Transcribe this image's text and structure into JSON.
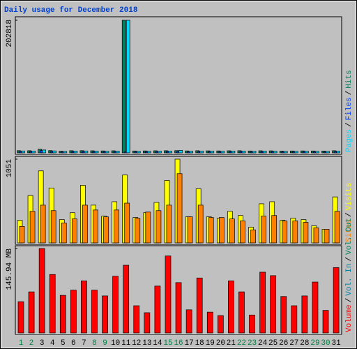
{
  "title": "Daily usage for December 2018",
  "legend_separator": "/",
  "chart_data": [
    {
      "type": "bar",
      "ylim": [
        0,
        202818
      ],
      "yticks": [
        202818
      ],
      "series": [
        {
          "name": "Hits",
          "color": "#00805c",
          "values": [
            3400,
            3300,
            5600,
            3500,
            2600,
            3300,
            3400,
            3200,
            3000,
            3200,
            202818,
            2900,
            3000,
            3200,
            3300,
            3400,
            3000,
            3300,
            3100,
            3000,
            3200,
            3300,
            2900,
            3200,
            3100,
            2800,
            2900,
            3000,
            2900,
            2800,
            3300
          ]
        },
        {
          "name": "Files",
          "color": "#0040ff",
          "values": [
            2200,
            2100,
            3600,
            2300,
            1700,
            2200,
            2200,
            2100,
            1900,
            2100,
            1500,
            1800,
            1900,
            2100,
            2200,
            2300,
            1900,
            2100,
            2000,
            1900,
            2100,
            2200,
            1800,
            2100,
            2000,
            1800,
            1800,
            1900,
            1800,
            1800,
            2100
          ]
        },
        {
          "name": "Pages",
          "color": "#00d8ff",
          "values": [
            2900,
            2800,
            4400,
            3000,
            2200,
            2800,
            2900,
            2700,
            2500,
            2700,
            202818,
            2400,
            2500,
            2700,
            2800,
            3900,
            2500,
            2800,
            2600,
            2500,
            2700,
            2800,
            2400,
            2700,
            2600,
            2300,
            2400,
            2500,
            2400,
            2300,
            2800
          ]
        }
      ]
    },
    {
      "type": "bar",
      "ylim": [
        0,
        1051
      ],
      "yticks": [
        1051
      ],
      "series": [
        {
          "name": "Visits",
          "color": "#ffff00",
          "values": [
            284,
            594,
            904,
            689,
            293,
            379,
            723,
            474,
            336,
            517,
            852,
            319,
            379,
            508,
            784,
            1051,
            327,
            680,
            327,
            310,
            396,
            344,
            198,
            491,
            517,
            284,
            310,
            293,
            215,
            172,
            577
          ]
        },
        {
          "name": "Sites",
          "color": "#ff8000",
          "values": [
            207,
            396,
            474,
            405,
            250,
            301,
            474,
            413,
            327,
            413,
            499,
            310,
            387,
            405,
            474,
            869,
            327,
            474,
            319,
            319,
            301,
            276,
            164,
            336,
            344,
            276,
            276,
            258,
            189,
            172,
            396
          ]
        }
      ]
    },
    {
      "type": "bar",
      "ylim": [
        0,
        145.94
      ],
      "yticks": [
        {
          "value": 145.94,
          "label": "145.94 MB"
        }
      ],
      "legend_only": [
        {
          "name": "Vol. Out",
          "color": "#00805c"
        },
        {
          "name": "Vol. In",
          "color": "#0080a0"
        }
      ],
      "series": [
        {
          "name": "Volume",
          "color": "#ff0000",
          "values": [
            54,
            71,
            145.94,
            101,
            65,
            74,
            90,
            74,
            64,
            98,
            117,
            47,
            35,
            81,
            133,
            87,
            40,
            95,
            36,
            30,
            90,
            71,
            31,
            105,
            99,
            63,
            47,
            64,
            88,
            39,
            113
          ]
        }
      ],
      "categories": [
        "1",
        "2",
        "3",
        "4",
        "5",
        "6",
        "7",
        "8",
        "9",
        "10",
        "11",
        "12",
        "13",
        "14",
        "15",
        "16",
        "17",
        "18",
        "19",
        "20",
        "21",
        "22",
        "23",
        "24",
        "25",
        "26",
        "27",
        "28",
        "29",
        "30",
        "31"
      ],
      "category_colors": [
        "#008040",
        "#008040",
        "#000000",
        "#000000",
        "#000000",
        "#000000",
        "#000000",
        "#008040",
        "#008040",
        "#000000",
        "#000000",
        "#000000",
        "#000000",
        "#000000",
        "#008040",
        "#008040",
        "#000000",
        "#000000",
        "#000000",
        "#000000",
        "#000000",
        "#008040",
        "#008040",
        "#000000",
        "#000000",
        "#000000",
        "#000000",
        "#000000",
        "#008040",
        "#008040",
        "#000000"
      ]
    }
  ]
}
